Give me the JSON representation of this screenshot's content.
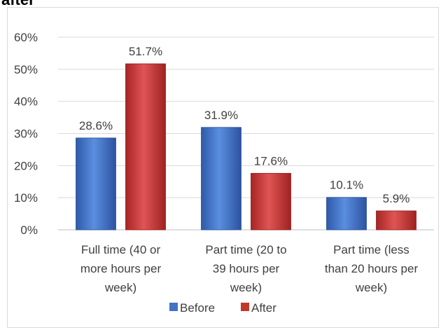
{
  "header": {
    "cut_title": "after"
  },
  "chart_data": {
    "type": "bar",
    "title": "",
    "xlabel": "",
    "ylabel": "",
    "ylim": [
      0,
      60
    ],
    "yticks": [
      "0%",
      "10%",
      "20%",
      "30%",
      "40%",
      "50%",
      "60%"
    ],
    "grid": true,
    "legend_position": "bottom",
    "categories": [
      [
        "Full time (40 or",
        "more hours per",
        "week)"
      ],
      [
        "Part time (20 to",
        "39 hours per",
        "week)"
      ],
      [
        "Part time (less",
        "than 20 hours per",
        "week)"
      ]
    ],
    "series": [
      {
        "name": "Before",
        "color": "#4472c4",
        "values": [
          28.6,
          31.9,
          10.1
        ],
        "labels": [
          "28.6%",
          "31.9%",
          "10.1%"
        ]
      },
      {
        "name": "After",
        "color": "#c0392b",
        "values": [
          51.7,
          17.6,
          5.9
        ],
        "labels": [
          "51.7%",
          "17.6%",
          "5.9%"
        ]
      }
    ]
  }
}
